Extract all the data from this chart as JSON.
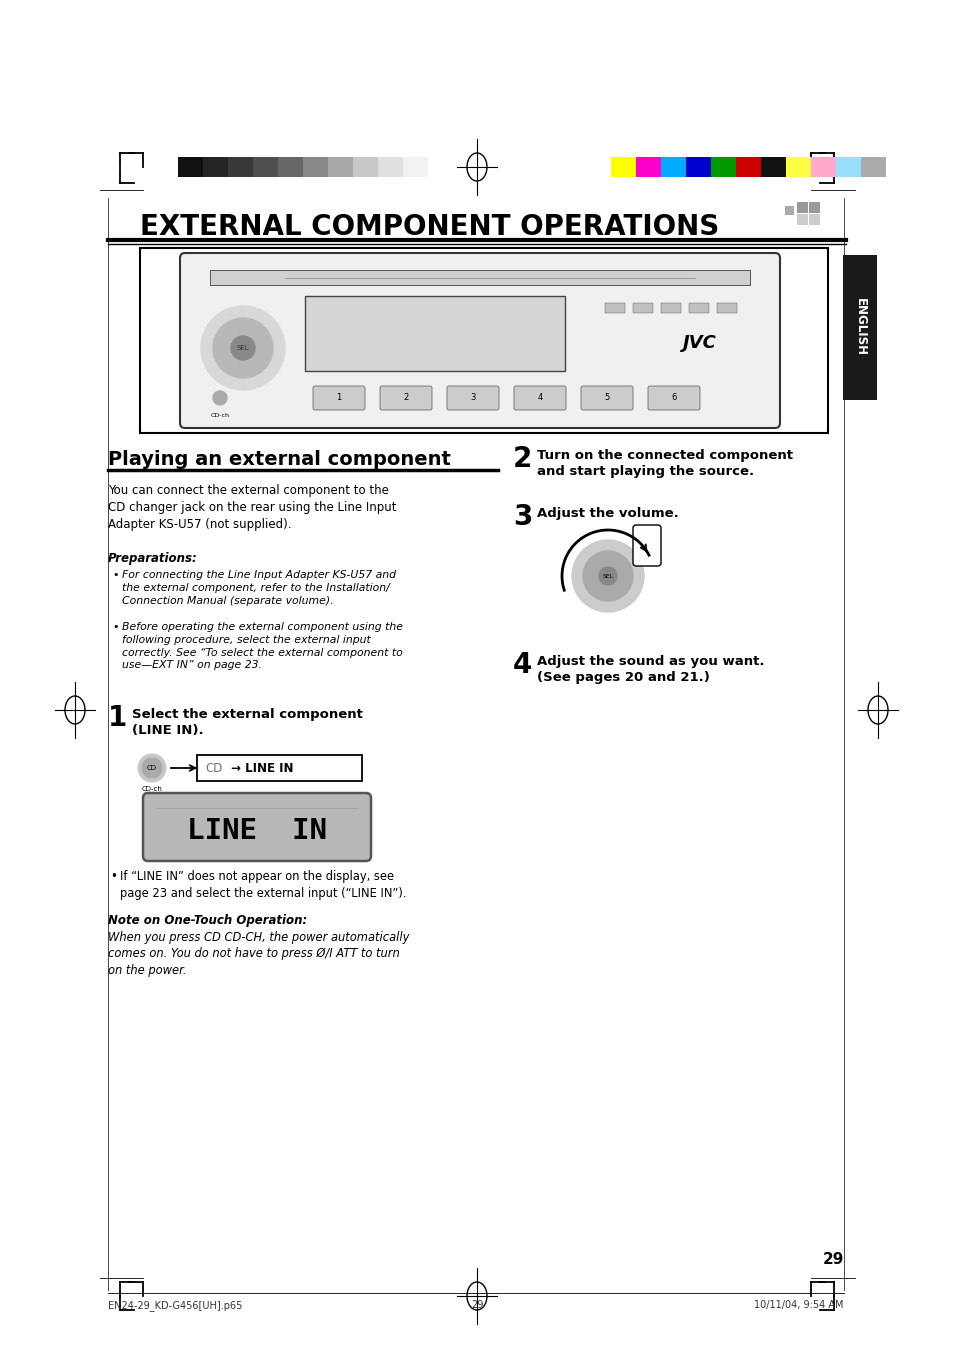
{
  "bg_color": "#ffffff",
  "title": "EXTERNAL COMPONENT OPERATIONS",
  "section_title": "Playing an external component",
  "page_number": "29",
  "footer_left": "EN24-29_KD-G456[UH].p65",
  "footer_center": "29",
  "footer_right": "10/11/04, 9:54 AM",
  "step1_title": "Select the external component\n(LINE IN).",
  "step2_title": "Turn on the connected component\nand start playing the source.",
  "step3_title": "Adjust the volume.",
  "step4_title": "Adjust the sound as you want.\n(See pages 20 and 21.)",
  "body_text": "You can connect the external component to the\nCD changer jack on the rear using the Line Input\nAdapter KS-U57 (not supplied).",
  "prep_title": "Preparations:",
  "prep_bullet1": "For connecting the Line Input Adapter KS-U57 and\nthe external component, refer to the Installation/\nConnection Manual (separate volume).",
  "prep_bullet2": "Before operating the external component using the\nfollowing procedure, select the external input\ncorrectly. See “To select the external component to\nuse—EXT IN” on page 23.",
  "note_title": "Note on One-Touch Operation:",
  "note_text": "When you press CD CD-CH, the power automatically\ncomes on. You do not have to press Ø/I ATT to turn\non the power.",
  "bullet_note": "If “LINE IN” does not appear on the display, see\npage 23 and select the external input (“LINE IN”).",
  "english_tab_color": "#1a1a1a",
  "grayscale_bar_colors": [
    "#111111",
    "#252525",
    "#383838",
    "#4f4f4f",
    "#676767",
    "#888888",
    "#a8a8a8",
    "#c8c8c8",
    "#e0e0e0",
    "#f2f2f2"
  ],
  "color_bar_colors": [
    "#ffff00",
    "#ff00cc",
    "#00aaff",
    "#0000cc",
    "#009900",
    "#cc0000",
    "#111111",
    "#ffff44",
    "#ffaacc",
    "#99ddff",
    "#aaaaaa"
  ]
}
